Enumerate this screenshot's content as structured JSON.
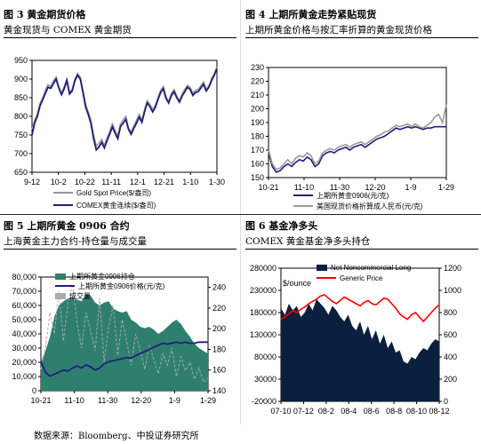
{
  "source": "数据来源：Bloomberg、中投证券研究所",
  "chart_data": [
    {
      "type": "line",
      "fig_label": "图 3 黄金期货价格",
      "title": "黄金现货与 COMEX 黄金期货",
      "x_ticks": [
        "9-12",
        "10-2",
        "10-22",
        "11-11",
        "12-1",
        "12-21",
        "1-10",
        "1-30"
      ],
      "y_ticks": [
        650,
        700,
        750,
        800,
        850,
        900,
        950
      ],
      "ylim": [
        650,
        950
      ],
      "legend_position": "bottom",
      "series": [
        {
          "name": "Gold Spot Price($/盎司)",
          "color": "#999999",
          "values": [
            765,
            790,
            805,
            835,
            850,
            870,
            885,
            880,
            895,
            905,
            880,
            862,
            880,
            900,
            865,
            872,
            900,
            915,
            905,
            870,
            832,
            812,
            790,
            750,
            720,
            728,
            738,
            722,
            742,
            760,
            780,
            762,
            748,
            780,
            790,
            800,
            770,
            758,
            775,
            790,
            805,
            790,
            818,
            842,
            832,
            818,
            830,
            850,
            870,
            880,
            852,
            840,
            862,
            872,
            855,
            842,
            860,
            872,
            883,
            878,
            862,
            870,
            872,
            882,
            892,
            872,
            882,
            902,
            915,
            932
          ]
        },
        {
          "name": "COMEX黄金连续($/盎司)",
          "color": "#1f1f7a",
          "values": [
            750,
            782,
            800,
            828,
            845,
            862,
            878,
            875,
            888,
            900,
            876,
            858,
            874,
            896,
            860,
            868,
            895,
            910,
            900,
            864,
            825,
            805,
            780,
            740,
            710,
            718,
            730,
            715,
            735,
            752,
            772,
            755,
            740,
            772,
            782,
            792,
            765,
            752,
            768,
            782,
            798,
            784,
            812,
            836,
            826,
            812,
            824,
            845,
            864,
            874,
            848,
            836,
            856,
            866,
            850,
            838,
            854,
            866,
            878,
            872,
            856,
            864,
            866,
            876,
            886,
            868,
            878,
            896,
            910,
            928
          ]
        }
      ]
    },
    {
      "type": "line",
      "fig_label": "图 4 上期所黄金走势紧贴现货",
      "title": "上期所黄金价格与按汇率折算的黄金现货价格",
      "x_ticks": [
        "10-21",
        "11-10",
        "11-30",
        "12-20",
        "1-9",
        "1-29"
      ],
      "y_ticks": [
        150,
        160,
        170,
        180,
        190,
        200,
        210,
        220,
        230
      ],
      "ylim": [
        150,
        230
      ],
      "legend_position": "bottom",
      "series": [
        {
          "name": "上期所黄金0906(元/克)",
          "color": "#1f1f7a",
          "values": [
            168,
            158,
            154,
            155,
            158,
            160,
            158,
            161,
            163,
            162,
            165,
            163,
            158,
            160,
            166,
            168,
            169,
            168,
            170,
            171,
            172,
            170,
            172,
            173,
            174,
            172,
            174,
            176,
            178,
            179,
            180,
            182,
            184,
            186,
            185,
            186,
            187,
            186,
            187,
            186,
            185,
            186,
            186,
            187,
            187,
            187,
            187
          ]
        },
        {
          "name": "美国现货价格折算成人民币(元/克)",
          "color": "#999999",
          "values": [
            170,
            160,
            156,
            157,
            160,
            163,
            160,
            164,
            166,
            165,
            168,
            166,
            160,
            162,
            168,
            170,
            171,
            170,
            172,
            173,
            174,
            172,
            174,
            175,
            176,
            174,
            176,
            178,
            180,
            181,
            183,
            184,
            186,
            188,
            187,
            188,
            189,
            187,
            189,
            187,
            186,
            188,
            190,
            194,
            196,
            190,
            203
          ]
        }
      ]
    },
    {
      "type": "area",
      "fig_label": "图 5 上期所黄金 0906 合约",
      "title": "上海黄金主力合约-持仓量与成交量",
      "x_ticks": [
        "10-21",
        "11-10",
        "11-30",
        "12-20",
        "1-9",
        "1-29"
      ],
      "y_left_ticks": [
        0,
        10000,
        20000,
        30000,
        40000,
        50000,
        60000,
        70000,
        80000
      ],
      "y_right_ticks": [
        140,
        160,
        180,
        200,
        220,
        240
      ],
      "legend_position": "top",
      "series": [
        {
          "name": "上期所黄金0906持仓",
          "color": "#2f7f6f",
          "axis": "left",
          "values": [
            20000,
            28000,
            38000,
            52000,
            60000,
            63000,
            65000,
            66000,
            64000,
            63000,
            68000,
            67000,
            62000,
            60000,
            62000,
            63000,
            58000,
            56000,
            55000,
            56000,
            50000,
            48000,
            45000,
            44000,
            45000,
            43000,
            40000,
            42000,
            45000,
            48000,
            50000,
            47000,
            42000,
            38000,
            33000,
            30000,
            28000,
            26000
          ]
        },
        {
          "name": "上期所黄金0906价格(元/克)",
          "color": "#1f1f7a",
          "axis": "right",
          "values": [
            168,
            158,
            154,
            156,
            158,
            160,
            159,
            162,
            164,
            162,
            165,
            163,
            160,
            162,
            166,
            168,
            169,
            170,
            171,
            172,
            172,
            174,
            176,
            178,
            180,
            182,
            184,
            186,
            185,
            186,
            187,
            186,
            187,
            186,
            186,
            187,
            187,
            187
          ]
        },
        {
          "name": "成交量",
          "color": "#aaaaaa",
          "axis": "left",
          "values": [
            15000,
            30000,
            55000,
            40000,
            70000,
            35000,
            62000,
            75000,
            48000,
            30000,
            55000,
            42000,
            28000,
            65000,
            20000,
            45000,
            60000,
            25000,
            50000,
            35000,
            18000,
            40000,
            28000,
            15000,
            32000,
            22000,
            12000,
            26000,
            18000,
            30000,
            10000,
            24000,
            14000,
            20000,
            8000,
            16000,
            6000,
            9000
          ]
        }
      ]
    },
    {
      "type": "area",
      "fig_label": "图 6 基金净多头",
      "title": "COMEX 黄金基金净多头持仓",
      "y_left_label": "$/ounce",
      "x_ticks": [
        "07-10",
        "07-12",
        "08-2",
        "08-4",
        "08-6",
        "08-8",
        "08-10",
        "08-12"
      ],
      "y_left_ticks": [
        -20000,
        30000,
        80000,
        130000,
        180000,
        230000,
        280000
      ],
      "y_right_ticks": [
        0,
        200,
        400,
        600,
        800,
        1000,
        1200
      ],
      "legend_position": "top",
      "series": [
        {
          "name": "Net Noncommercial Long",
          "color": "#0b1f3f",
          "axis": "left",
          "values": [
            190000,
            175000,
            200000,
            185000,
            195000,
            170000,
            180000,
            200000,
            185000,
            210000,
            200000,
            190000,
            175000,
            195000,
            185000,
            170000,
            160000,
            175000,
            150000,
            140000,
            160000,
            130000,
            150000,
            120000,
            140000,
            110000,
            130000,
            100000,
            115000,
            90000,
            95000,
            70000,
            65000,
            80000,
            75000,
            90000,
            100000,
            95000,
            110000,
            120000,
            115000
          ]
        },
        {
          "name": "Generic Price",
          "color": "#ff0000",
          "axis": "right",
          "values": [
            740,
            760,
            790,
            820,
            800,
            830,
            850,
            880,
            900,
            920,
            950,
            960,
            930,
            900,
            880,
            910,
            940,
            920,
            900,
            880,
            860,
            890,
            910,
            880,
            870,
            900,
            930,
            920,
            880,
            840,
            790,
            760,
            740,
            780,
            800,
            760,
            720,
            760,
            800,
            840,
            870
          ]
        }
      ]
    }
  ]
}
